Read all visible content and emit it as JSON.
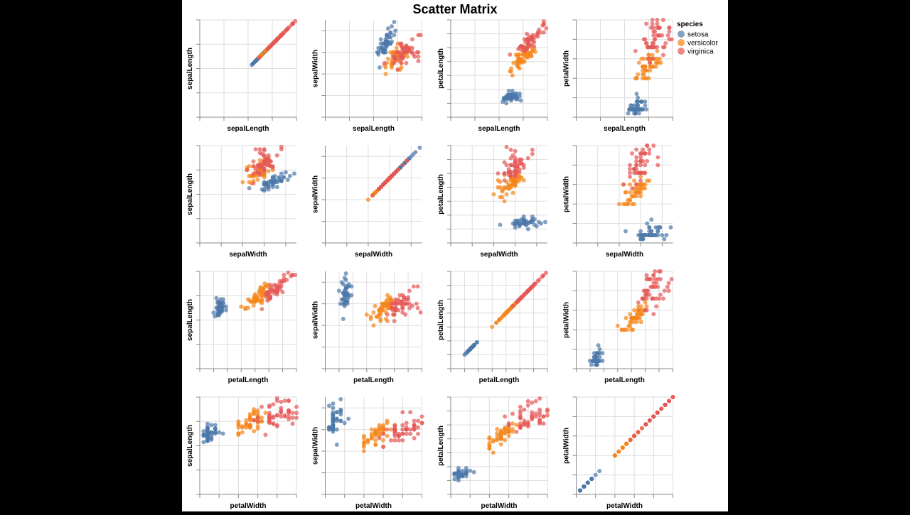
{
  "chart_data": {
    "type": "scatter",
    "title": "Scatter Matrix",
    "fields": [
      "sepalLength",
      "sepalWidth",
      "petalLength",
      "petalWidth"
    ],
    "domains": {
      "sepalLength": [
        0,
        8
      ],
      "sepalWidth": [
        0,
        4.5
      ],
      "petalLength": [
        0,
        7
      ],
      "petalWidth": [
        0,
        2.5
      ]
    },
    "tick_steps": {
      "sepalLength": 2,
      "sepalWidth": 1,
      "petalLength": 1,
      "petalWidth": 0.5
    },
    "grid": true,
    "legend": {
      "title": "species",
      "position": "right"
    },
    "series": [
      {
        "name": "setosa",
        "color": "#4c78a8",
        "values": [
          [
            5.1,
            3.5,
            1.4,
            0.2
          ],
          [
            4.9,
            3.0,
            1.4,
            0.2
          ],
          [
            4.7,
            3.2,
            1.3,
            0.2
          ],
          [
            4.6,
            3.1,
            1.5,
            0.2
          ],
          [
            5.0,
            3.6,
            1.4,
            0.2
          ],
          [
            5.4,
            3.9,
            1.7,
            0.4
          ],
          [
            4.6,
            3.4,
            1.4,
            0.3
          ],
          [
            5.0,
            3.4,
            1.5,
            0.2
          ],
          [
            4.4,
            2.9,
            1.4,
            0.2
          ],
          [
            4.9,
            3.1,
            1.5,
            0.1
          ],
          [
            5.4,
            3.7,
            1.5,
            0.2
          ],
          [
            4.8,
            3.4,
            1.6,
            0.2
          ],
          [
            4.8,
            3.0,
            1.4,
            0.1
          ],
          [
            4.3,
            3.0,
            1.1,
            0.1
          ],
          [
            5.8,
            4.0,
            1.2,
            0.2
          ],
          [
            5.7,
            4.4,
            1.5,
            0.4
          ],
          [
            5.4,
            3.9,
            1.3,
            0.4
          ],
          [
            5.1,
            3.5,
            1.4,
            0.3
          ],
          [
            5.7,
            3.8,
            1.7,
            0.3
          ],
          [
            5.1,
            3.8,
            1.5,
            0.3
          ],
          [
            5.4,
            3.4,
            1.7,
            0.2
          ],
          [
            5.1,
            3.7,
            1.5,
            0.4
          ],
          [
            4.6,
            3.6,
            1.0,
            0.2
          ],
          [
            5.1,
            3.3,
            1.7,
            0.5
          ],
          [
            4.8,
            3.4,
            1.9,
            0.2
          ],
          [
            5.0,
            3.0,
            1.6,
            0.2
          ],
          [
            5.0,
            3.4,
            1.6,
            0.4
          ],
          [
            5.2,
            3.5,
            1.5,
            0.2
          ],
          [
            5.2,
            3.4,
            1.4,
            0.2
          ],
          [
            4.7,
            3.2,
            1.6,
            0.2
          ],
          [
            4.8,
            3.1,
            1.6,
            0.2
          ],
          [
            5.4,
            3.4,
            1.5,
            0.4
          ],
          [
            5.2,
            4.1,
            1.5,
            0.1
          ],
          [
            5.5,
            4.2,
            1.4,
            0.2
          ],
          [
            4.9,
            3.1,
            1.5,
            0.1
          ],
          [
            5.0,
            3.2,
            1.2,
            0.2
          ],
          [
            5.5,
            3.5,
            1.3,
            0.2
          ],
          [
            4.9,
            3.1,
            1.5,
            0.1
          ],
          [
            4.4,
            3.0,
            1.3,
            0.2
          ],
          [
            5.1,
            3.4,
            1.5,
            0.2
          ],
          [
            5.0,
            3.5,
            1.3,
            0.3
          ],
          [
            4.5,
            2.3,
            1.3,
            0.3
          ],
          [
            4.4,
            3.2,
            1.3,
            0.2
          ],
          [
            5.0,
            3.5,
            1.6,
            0.6
          ],
          [
            5.1,
            3.8,
            1.9,
            0.4
          ],
          [
            4.8,
            3.0,
            1.4,
            0.3
          ],
          [
            5.1,
            3.8,
            1.6,
            0.2
          ],
          [
            4.6,
            3.2,
            1.4,
            0.2
          ],
          [
            5.3,
            3.7,
            1.5,
            0.2
          ],
          [
            5.0,
            3.3,
            1.4,
            0.2
          ]
        ]
      },
      {
        "name": "versicolor",
        "color": "#f58518",
        "values": [
          [
            7.0,
            3.2,
            4.7,
            1.4
          ],
          [
            6.4,
            3.2,
            4.5,
            1.5
          ],
          [
            6.9,
            3.1,
            4.9,
            1.5
          ],
          [
            5.5,
            2.3,
            4.0,
            1.3
          ],
          [
            6.5,
            2.8,
            4.6,
            1.5
          ],
          [
            5.7,
            2.8,
            4.5,
            1.3
          ],
          [
            6.3,
            3.3,
            4.7,
            1.6
          ],
          [
            4.9,
            2.4,
            3.3,
            1.0
          ],
          [
            6.6,
            2.9,
            4.6,
            1.3
          ],
          [
            5.2,
            2.7,
            3.9,
            1.4
          ],
          [
            5.0,
            2.0,
            3.5,
            1.0
          ],
          [
            5.9,
            3.0,
            4.2,
            1.5
          ],
          [
            6.0,
            2.2,
            4.0,
            1.0
          ],
          [
            6.1,
            2.9,
            4.7,
            1.4
          ],
          [
            5.6,
            2.9,
            3.6,
            1.3
          ],
          [
            6.7,
            3.1,
            4.4,
            1.4
          ],
          [
            5.6,
            3.0,
            4.5,
            1.5
          ],
          [
            5.8,
            2.7,
            4.1,
            1.0
          ],
          [
            6.2,
            2.2,
            4.5,
            1.5
          ],
          [
            5.6,
            2.5,
            3.9,
            1.1
          ],
          [
            5.9,
            3.2,
            4.8,
            1.8
          ],
          [
            6.1,
            2.8,
            4.0,
            1.3
          ],
          [
            6.3,
            2.5,
            4.9,
            1.5
          ],
          [
            6.1,
            2.8,
            4.7,
            1.2
          ],
          [
            6.4,
            2.9,
            4.3,
            1.3
          ],
          [
            6.6,
            3.0,
            4.4,
            1.4
          ],
          [
            6.8,
            2.8,
            4.8,
            1.4
          ],
          [
            6.7,
            3.0,
            5.0,
            1.7
          ],
          [
            6.0,
            2.9,
            4.5,
            1.5
          ],
          [
            5.7,
            2.6,
            3.5,
            1.0
          ],
          [
            5.5,
            2.4,
            3.8,
            1.1
          ],
          [
            5.5,
            2.4,
            3.7,
            1.0
          ],
          [
            5.8,
            2.7,
            3.9,
            1.2
          ],
          [
            6.0,
            2.7,
            5.1,
            1.6
          ],
          [
            5.4,
            3.0,
            4.5,
            1.5
          ],
          [
            6.0,
            3.4,
            4.5,
            1.6
          ],
          [
            6.7,
            3.1,
            4.7,
            1.5
          ],
          [
            6.3,
            2.3,
            4.4,
            1.3
          ],
          [
            5.6,
            3.0,
            4.1,
            1.3
          ],
          [
            5.5,
            2.5,
            4.0,
            1.3
          ],
          [
            5.5,
            2.6,
            4.4,
            1.2
          ],
          [
            6.1,
            3.0,
            4.6,
            1.4
          ],
          [
            5.8,
            2.6,
            4.0,
            1.2
          ],
          [
            5.0,
            2.3,
            3.3,
            1.0
          ],
          [
            5.6,
            2.7,
            4.2,
            1.3
          ],
          [
            5.7,
            3.0,
            4.2,
            1.2
          ],
          [
            5.7,
            2.9,
            4.2,
            1.3
          ],
          [
            6.2,
            2.9,
            4.3,
            1.3
          ],
          [
            5.1,
            2.5,
            3.0,
            1.1
          ],
          [
            5.7,
            2.8,
            4.1,
            1.3
          ]
        ]
      },
      {
        "name": "virginica",
        "color": "#e45756",
        "values": [
          [
            6.3,
            3.3,
            6.0,
            2.5
          ],
          [
            5.8,
            2.7,
            5.1,
            1.9
          ],
          [
            7.1,
            3.0,
            5.9,
            2.1
          ],
          [
            6.3,
            2.9,
            5.6,
            1.8
          ],
          [
            6.5,
            3.0,
            5.8,
            2.2
          ],
          [
            7.6,
            3.0,
            6.6,
            2.1
          ],
          [
            4.9,
            2.5,
            4.5,
            1.7
          ],
          [
            7.3,
            2.9,
            6.3,
            1.8
          ],
          [
            6.7,
            2.5,
            5.8,
            1.8
          ],
          [
            7.2,
            3.6,
            6.1,
            2.5
          ],
          [
            6.5,
            3.2,
            5.1,
            2.0
          ],
          [
            6.4,
            2.7,
            5.3,
            1.9
          ],
          [
            6.8,
            3.0,
            5.5,
            2.1
          ],
          [
            5.7,
            2.5,
            5.0,
            2.0
          ],
          [
            5.8,
            2.8,
            5.1,
            2.4
          ],
          [
            6.4,
            3.2,
            5.3,
            2.3
          ],
          [
            6.5,
            3.0,
            5.5,
            1.8
          ],
          [
            7.7,
            3.8,
            6.7,
            2.2
          ],
          [
            7.7,
            2.6,
            6.9,
            2.3
          ],
          [
            6.0,
            2.2,
            5.0,
            1.5
          ],
          [
            6.9,
            3.2,
            5.7,
            2.3
          ],
          [
            5.6,
            2.8,
            4.9,
            2.0
          ],
          [
            7.7,
            2.8,
            6.7,
            2.0
          ],
          [
            6.3,
            2.7,
            4.9,
            1.8
          ],
          [
            6.7,
            3.3,
            5.7,
            2.1
          ],
          [
            7.2,
            3.2,
            6.0,
            1.8
          ],
          [
            6.2,
            2.8,
            4.8,
            1.8
          ],
          [
            6.1,
            3.0,
            4.9,
            1.8
          ],
          [
            6.4,
            2.8,
            5.6,
            2.1
          ],
          [
            7.2,
            3.0,
            5.8,
            1.6
          ],
          [
            7.4,
            2.8,
            6.1,
            1.9
          ],
          [
            7.9,
            3.8,
            6.4,
            2.0
          ],
          [
            6.4,
            2.8,
            5.6,
            2.2
          ],
          [
            6.3,
            2.8,
            5.1,
            1.5
          ],
          [
            6.1,
            2.6,
            5.6,
            1.4
          ],
          [
            7.7,
            3.0,
            6.1,
            2.3
          ],
          [
            6.3,
            3.4,
            5.6,
            2.4
          ],
          [
            6.4,
            3.1,
            5.5,
            1.8
          ],
          [
            6.0,
            3.0,
            4.8,
            1.8
          ],
          [
            6.9,
            3.1,
            5.4,
            2.1
          ],
          [
            6.7,
            3.1,
            5.6,
            2.4
          ],
          [
            6.9,
            3.1,
            5.1,
            2.3
          ],
          [
            5.8,
            2.7,
            5.1,
            1.9
          ],
          [
            6.8,
            3.2,
            5.9,
            2.3
          ],
          [
            6.7,
            3.3,
            5.7,
            2.5
          ],
          [
            6.7,
            3.0,
            5.2,
            2.3
          ],
          [
            6.3,
            2.5,
            5.0,
            1.9
          ],
          [
            6.5,
            3.0,
            5.2,
            2.0
          ],
          [
            6.2,
            3.4,
            5.4,
            2.3
          ],
          [
            5.9,
            3.0,
            5.1,
            1.8
          ]
        ]
      }
    ]
  }
}
